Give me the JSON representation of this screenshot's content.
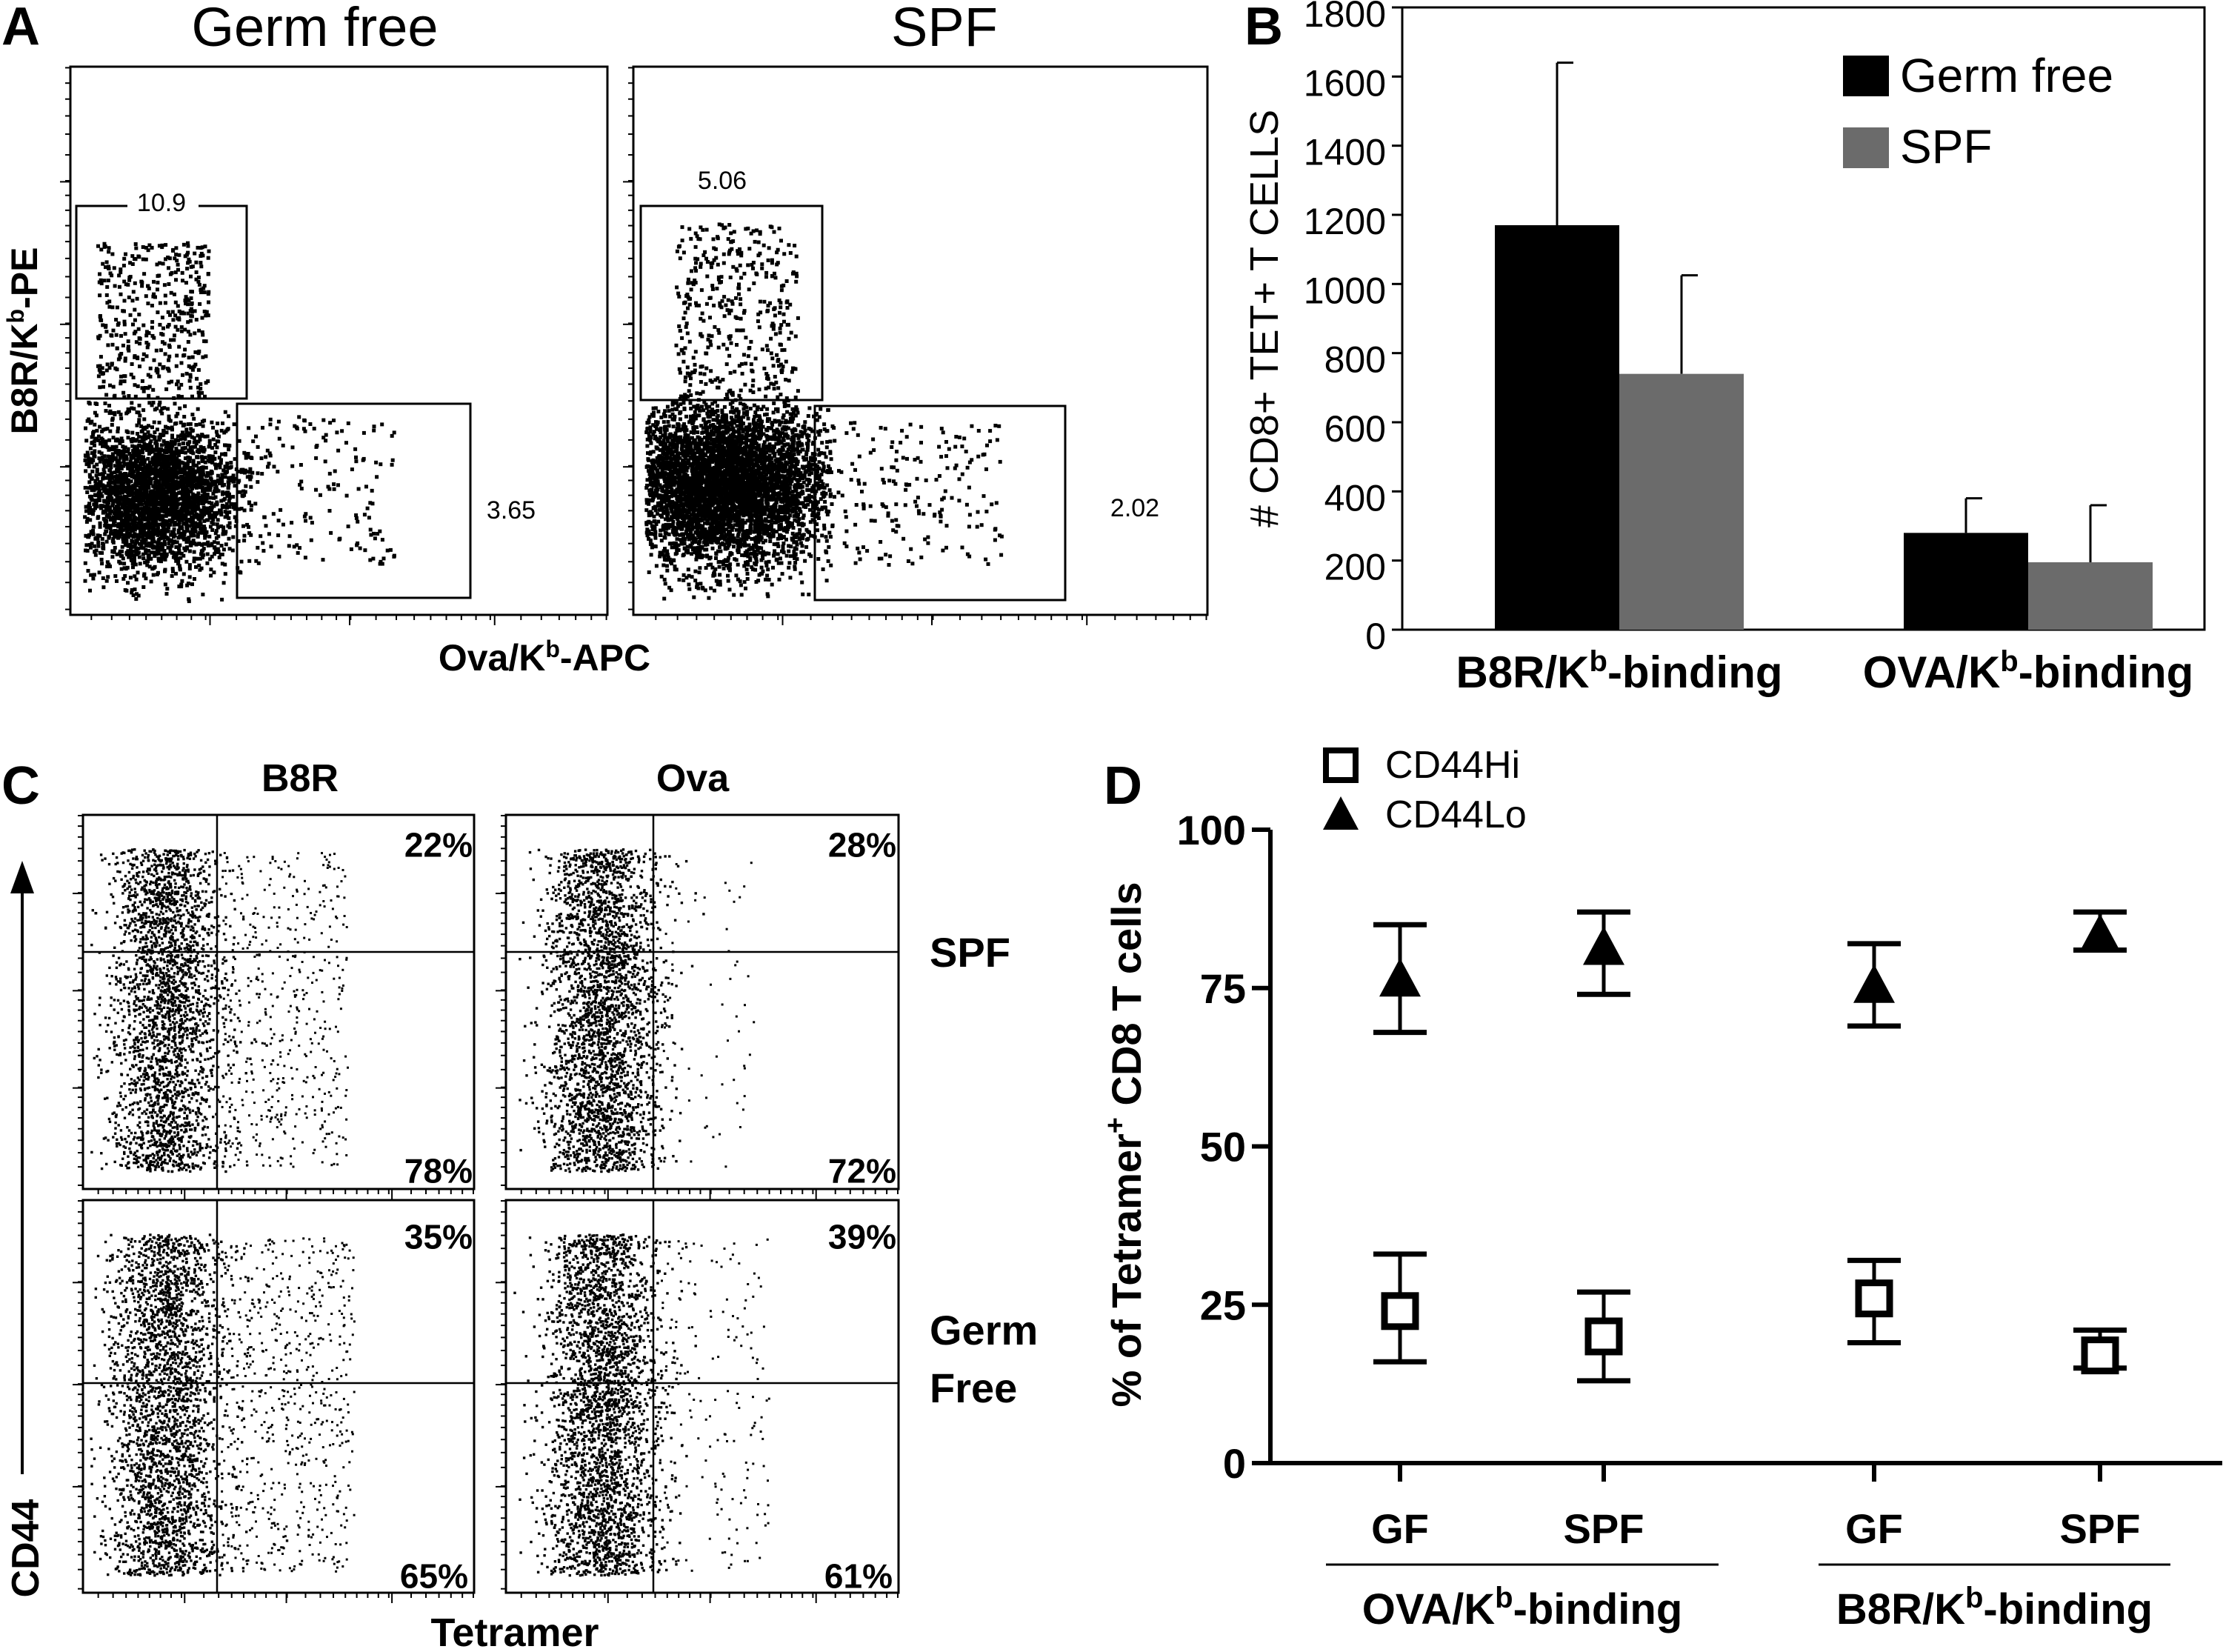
{
  "panel_letters": [
    "A",
    "B",
    "C",
    "D"
  ],
  "panel_a": {
    "columns": [
      "Germ free",
      "SPF"
    ],
    "ylabel_main": "B8R/K",
    "ylabel_sup": "b",
    "ylabel_tail": "-PE",
    "xlabel_main": "Ova/K",
    "xlabel_sup": "b",
    "xlabel_tail": "-APC",
    "plots": [
      {
        "name": "Germ free",
        "b8r_gate": "10.9",
        "ova_gate": "3.65"
      },
      {
        "name": "SPF",
        "b8r_gate": "5.06",
        "ova_gate": "2.02"
      }
    ]
  },
  "panel_c": {
    "columns": [
      "B8R",
      "Ova"
    ],
    "rows": [
      "SPF",
      "Germ",
      "Free"
    ],
    "ylabel": "CD44",
    "xlabel": "Tetramer",
    "plots": [
      {
        "top": "22%",
        "bottom": "78%"
      },
      {
        "top": "28%",
        "bottom": "72%"
      },
      {
        "top": "35%",
        "bottom": "65%"
      },
      {
        "top": "39%",
        "bottom": "61%"
      }
    ]
  },
  "chart_data": [
    {
      "panel": "B",
      "type": "bar",
      "title": "",
      "ylabel": "# CD8+ TET+ T CELLS",
      "ylim": [
        0,
        1800
      ],
      "yticks": [
        0,
        200,
        400,
        600,
        800,
        1000,
        1200,
        1400,
        1600,
        1800
      ],
      "categories": [
        {
          "main": "B8R/K",
          "sup": "b",
          "tail": "-binding"
        },
        {
          "main": "OVA/K",
          "sup": "b",
          "tail": "-binding"
        }
      ],
      "legend_position": "top-right",
      "series": [
        {
          "name": "Germ free",
          "color": "#000000",
          "values": [
            1170,
            280
          ],
          "error": [
            470,
            100
          ]
        },
        {
          "name": "SPF",
          "color": "#6b6b6b",
          "values": [
            740,
            195
          ],
          "error": [
            285,
            165
          ]
        }
      ]
    },
    {
      "panel": "D",
      "type": "scatter",
      "title": "",
      "ylabel_main": "% of Tetramer",
      "ylabel_sup": "+",
      "ylabel_tail": " CD8 T cells",
      "ylim": [
        0,
        100
      ],
      "yticks": [
        0,
        25,
        50,
        75,
        100
      ],
      "x": [
        "GF",
        "SPF",
        "GF",
        "SPF"
      ],
      "groups": [
        {
          "main": "OVA/K",
          "sup": "b",
          "tail": "-binding"
        },
        {
          "main": "B8R/K",
          "sup": "b",
          "tail": "-binding"
        }
      ],
      "legend_position": "top-left",
      "series": [
        {
          "name": "CD44Hi",
          "marker": "open-square",
          "values": [
            24,
            20,
            26,
            17
          ],
          "err_low": [
            16,
            13,
            19,
            15
          ],
          "err_high": [
            33,
            27,
            32,
            21
          ]
        },
        {
          "name": "CD44Lo",
          "marker": "filled-triangle",
          "values": [
            76,
            81,
            75,
            83
          ],
          "err_low": [
            68,
            74,
            69,
            81
          ],
          "err_high": [
            85,
            87,
            82,
            87
          ]
        }
      ]
    }
  ]
}
